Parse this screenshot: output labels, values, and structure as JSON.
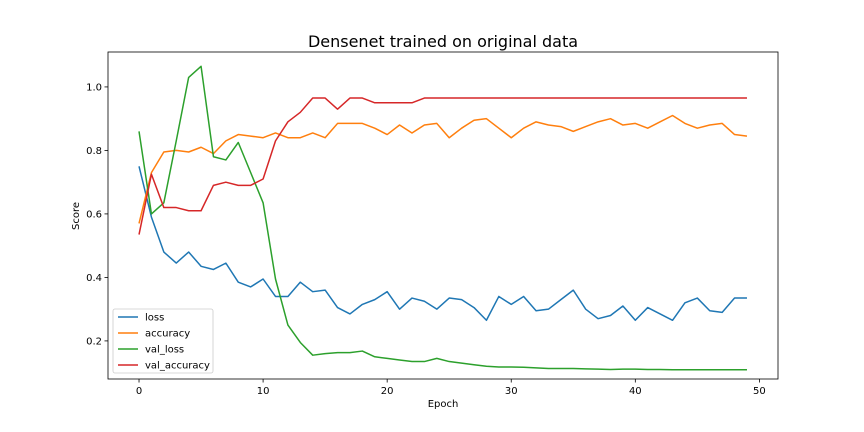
{
  "chart_data": {
    "type": "line",
    "title": "Densenet trained on original data",
    "xlabel": "Epoch",
    "ylabel": "Score",
    "xlim": [
      -2.5,
      51.5
    ],
    "ylim": [
      0.08,
      1.11
    ],
    "xticks": [
      0,
      10,
      20,
      30,
      40,
      50
    ],
    "yticks": [
      0.2,
      0.4,
      0.6,
      0.8,
      1.0
    ],
    "xtick_labels": [
      "0",
      "10",
      "20",
      "30",
      "40",
      "50"
    ],
    "ytick_labels": [
      "0.2",
      "0.4",
      "0.6",
      "0.8",
      "1.0"
    ],
    "grid": false,
    "legend_position": "lower-left",
    "x": [
      0,
      1,
      2,
      3,
      4,
      5,
      6,
      7,
      8,
      9,
      10,
      11,
      12,
      13,
      14,
      15,
      16,
      17,
      18,
      19,
      20,
      21,
      22,
      23,
      24,
      25,
      26,
      27,
      28,
      29,
      30,
      31,
      32,
      33,
      34,
      35,
      36,
      37,
      38,
      39,
      40,
      41,
      42,
      43,
      44,
      45,
      46,
      47,
      48,
      49
    ],
    "series": [
      {
        "name": "loss",
        "color": "#1f77b4",
        "values": [
          0.75,
          0.59,
          0.48,
          0.445,
          0.48,
          0.435,
          0.425,
          0.445,
          0.385,
          0.37,
          0.395,
          0.34,
          0.34,
          0.385,
          0.355,
          0.36,
          0.305,
          0.285,
          0.315,
          0.33,
          0.355,
          0.3,
          0.335,
          0.325,
          0.3,
          0.335,
          0.33,
          0.305,
          0.265,
          0.34,
          0.315,
          0.34,
          0.295,
          0.3,
          0.33,
          0.36,
          0.3,
          0.27,
          0.28,
          0.31,
          0.265,
          0.305,
          0.285,
          0.265,
          0.32,
          0.335,
          0.295,
          0.29,
          0.335,
          0.335
        ]
      },
      {
        "name": "accuracy",
        "color": "#ff7f0e",
        "values": [
          0.57,
          0.73,
          0.795,
          0.8,
          0.795,
          0.81,
          0.79,
          0.83,
          0.85,
          0.845,
          0.84,
          0.855,
          0.84,
          0.84,
          0.855,
          0.84,
          0.885,
          0.885,
          0.885,
          0.87,
          0.85,
          0.88,
          0.855,
          0.88,
          0.885,
          0.84,
          0.87,
          0.895,
          0.9,
          0.87,
          0.84,
          0.87,
          0.89,
          0.88,
          0.875,
          0.86,
          0.875,
          0.89,
          0.9,
          0.88,
          0.885,
          0.87,
          0.89,
          0.91,
          0.885,
          0.87,
          0.88,
          0.885,
          0.85,
          0.845
        ]
      },
      {
        "name": "val_loss",
        "color": "#2ca02c",
        "values": [
          0.86,
          0.6,
          0.635,
          0.83,
          1.03,
          1.065,
          0.78,
          0.77,
          0.825,
          0.73,
          0.635,
          0.395,
          0.25,
          0.195,
          0.155,
          0.16,
          0.163,
          0.163,
          0.168,
          0.15,
          0.145,
          0.14,
          0.135,
          0.135,
          0.145,
          0.135,
          0.13,
          0.125,
          0.12,
          0.118,
          0.118,
          0.117,
          0.115,
          0.113,
          0.113,
          0.113,
          0.112,
          0.111,
          0.11,
          0.111,
          0.111,
          0.11,
          0.11,
          0.109,
          0.109,
          0.109,
          0.109,
          0.109,
          0.109,
          0.109
        ]
      },
      {
        "name": "val_accuracy",
        "color": "#d62728",
        "values": [
          0.535,
          0.725,
          0.62,
          0.62,
          0.61,
          0.61,
          0.69,
          0.7,
          0.69,
          0.69,
          0.71,
          0.83,
          0.89,
          0.92,
          0.965,
          0.965,
          0.93,
          0.965,
          0.965,
          0.95,
          0.95,
          0.95,
          0.95,
          0.965,
          0.965,
          0.965,
          0.965,
          0.965,
          0.965,
          0.965,
          0.965,
          0.965,
          0.965,
          0.965,
          0.965,
          0.965,
          0.965,
          0.965,
          0.965,
          0.965,
          0.965,
          0.965,
          0.965,
          0.965,
          0.965,
          0.965,
          0.965,
          0.965,
          0.965,
          0.965
        ]
      }
    ]
  }
}
